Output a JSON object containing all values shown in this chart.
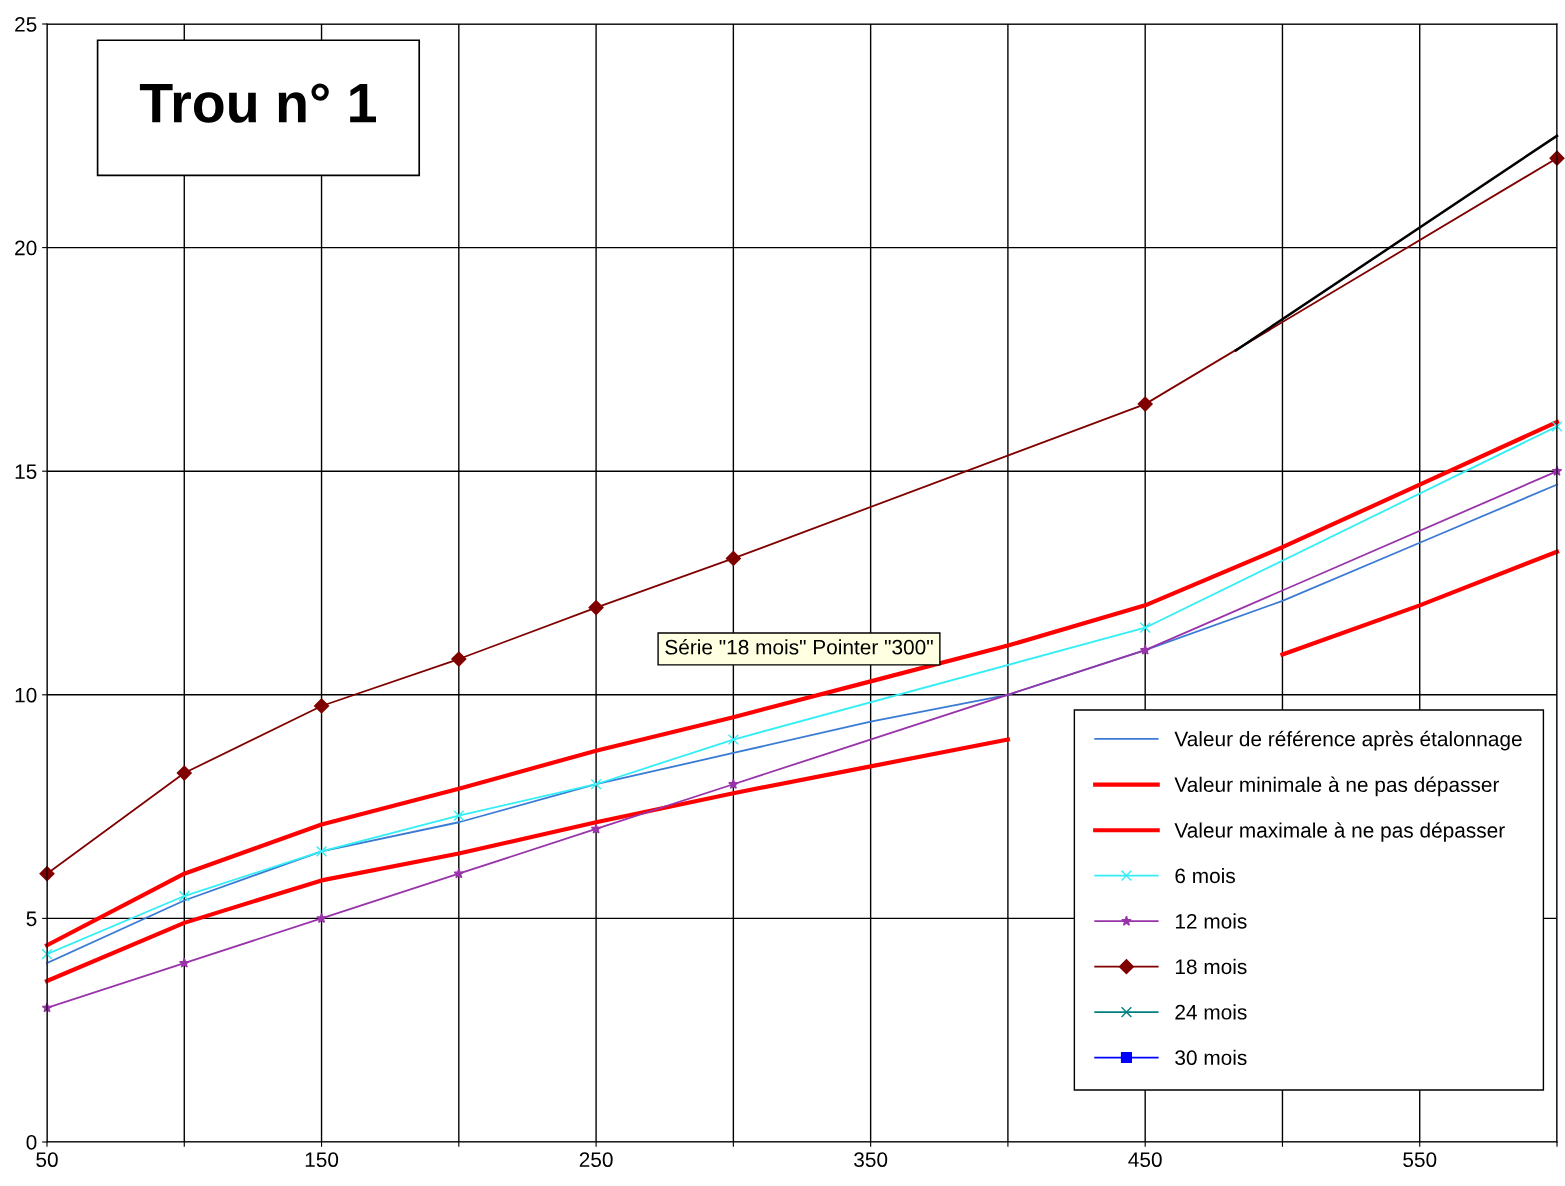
{
  "chart_data": {
    "type": "line",
    "title": "Trou n° 1",
    "x": [
      50,
      100,
      150,
      200,
      250,
      300,
      350,
      400,
      450,
      500,
      550,
      600
    ],
    "xlim": [
      50,
      600
    ],
    "ylim": [
      0,
      25
    ],
    "xticks": [
      50,
      {
        "value": 100,
        "label": null
      },
      150,
      {
        "value": 200,
        "label": null
      },
      250,
      {
        "value": 300,
        "label": null
      },
      350,
      {
        "value": 400,
        "label": null
      },
      450,
      {
        "value": 500,
        "label": null
      },
      550,
      {
        "value": 600,
        "label": null
      }
    ],
    "yticks": [
      0,
      5,
      10,
      15,
      20,
      25
    ],
    "grid": true,
    "legend": "bottom right",
    "series": [
      {
        "name": "Valeur de référence après étalonnage",
        "color": "#3a7bd5",
        "marker": "none",
        "values": [
          4.0,
          5.4,
          6.5,
          7.15,
          8.0,
          8.7,
          9.4,
          10.0,
          11.0,
          12.1,
          13.4,
          14.7
        ]
      },
      {
        "name": "Valeur minimale à ne pas dépasser",
        "color": "#ff0000",
        "marker": "none",
        "values": [
          3.6,
          4.9,
          5.85,
          6.45,
          7.15,
          7.8,
          8.4,
          9.0,
          null,
          10.9,
          12.0,
          13.2
        ]
      },
      {
        "name": "Valeur maximale à ne pas dépasser",
        "color": "#ff0000",
        "marker": "none",
        "values": [
          4.4,
          6.0,
          7.1,
          7.9,
          8.75,
          9.5,
          10.3,
          11.1,
          12.0,
          13.3,
          14.7,
          16.1
        ]
      },
      {
        "name": "6 mois",
        "color": "#33eef5",
        "marker": "cross",
        "x": [
          50,
          100,
          150,
          200,
          250,
          300,
          450,
          600
        ],
        "values": [
          4.2,
          5.5,
          6.5,
          7.3,
          8.0,
          9.0,
          11.5,
          16.0
        ]
      },
      {
        "name": "12 mois",
        "color": "#9933aa",
        "marker": "star",
        "x": [
          50,
          100,
          150,
          200,
          250,
          300,
          450,
          600
        ],
        "values": [
          3.0,
          4.0,
          5.0,
          6.0,
          7.0,
          8.0,
          11.0,
          15.0
        ]
      },
      {
        "name": "18 mois",
        "color": "#800000",
        "marker": "diamond",
        "x": [
          50,
          100,
          150,
          200,
          250,
          300,
          450,
          600
        ],
        "values": [
          6.0,
          8.25,
          9.75,
          10.8,
          11.95,
          13.05,
          16.5,
          22.0
        ]
      },
      {
        "name": "24 mois",
        "color": "#008080",
        "marker": "cross",
        "values": [
          null,
          null,
          null,
          null,
          null,
          null,
          null,
          null,
          null,
          null,
          null,
          null
        ]
      },
      {
        "name": "30 mois",
        "color": "#0000ff",
        "marker": "square",
        "values": [
          null,
          null,
          null,
          null,
          null,
          null,
          null,
          null,
          null,
          null,
          null,
          null
        ]
      },
      {
        "color": "#000000",
        "marker": "none",
        "x": [
          483,
          600
        ],
        "values": [
          17.7,
          22.5
        ]
      }
    ],
    "annotations": [
      "Série \"18 mois\" Pointer \"300\""
    ]
  }
}
